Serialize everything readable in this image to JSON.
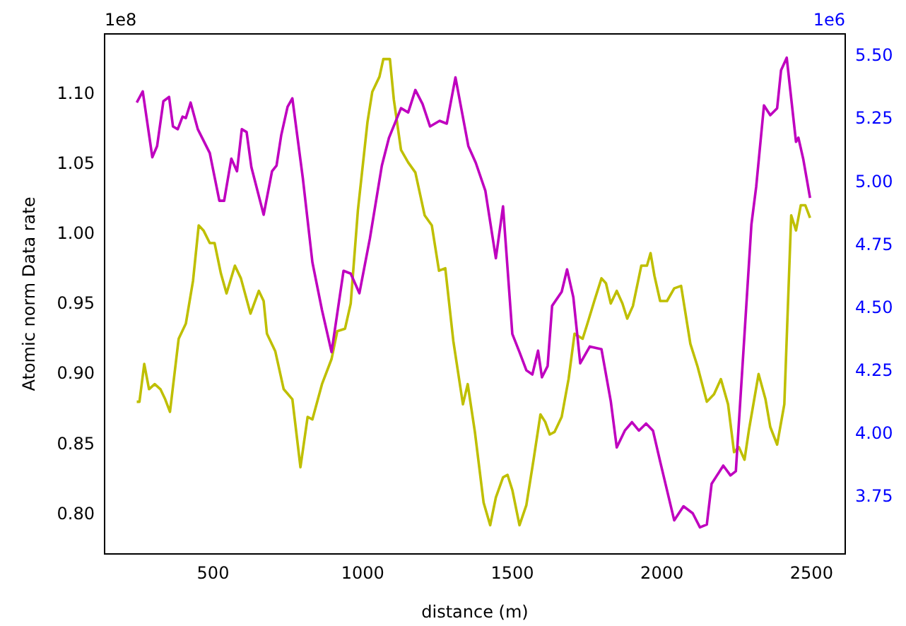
{
  "chart_data": {
    "type": "line",
    "xlabel": "distance (m)",
    "ylabel": "Atomic norm Data rate",
    "annotations": [
      "1e8",
      "1e6"
    ],
    "xlim": [
      137.5,
      2612.5
    ],
    "xticks": [
      500,
      1000,
      1500,
      2000,
      2500
    ],
    "ylim": [
      0.772,
      1.143
    ],
    "yticks": [
      {
        "value": 0.8,
        "label": "0.80"
      },
      {
        "value": 0.85,
        "label": "0.85"
      },
      {
        "value": 0.9,
        "label": "0.90"
      },
      {
        "value": 0.95,
        "label": "0.95"
      },
      {
        "value": 1.0,
        "label": "1.00"
      },
      {
        "value": 1.05,
        "label": "1.05"
      },
      {
        "value": 1.1,
        "label": "1.10"
      }
    ],
    "y2lim": [
      3.526,
      5.59
    ],
    "y2ticks": [
      3.75,
      {
        "value": 4.0,
        "label": "4.00"
      },
      4.25,
      {
        "value": 4.5,
        "label": "4.50"
      },
      4.75,
      {
        "value": 5.0,
        "label": "5.00"
      },
      5.25,
      {
        "value": 5.5,
        "label": "5.50"
      }
    ],
    "legend": false,
    "marker": "none",
    "line_style": "solid",
    "series": [
      {
        "color": "#bf00bf",
        "x": [
          245,
          265,
          297,
          313,
          334,
          353,
          366,
          382,
          398,
          409,
          425,
          449,
          489,
          521,
          537,
          561,
          580,
          596,
          612,
          628,
          669,
          697,
          712,
          728,
          749,
          765,
          800,
          832,
          864,
          896,
          936,
          960,
          989,
          1024,
          1064,
          1088,
          1128,
          1152,
          1176,
          1200,
          1225,
          1257,
          1281,
          1310,
          1353,
          1378,
          1410,
          1445,
          1469,
          1500,
          1524,
          1547,
          1567,
          1586,
          1599,
          1618,
          1633,
          1665,
          1683,
          1704,
          1727,
          1759,
          1798,
          1829,
          1849,
          1876,
          1900,
          1923,
          1947,
          1970,
          1994,
          2041,
          2072,
          2103,
          2127,
          2150,
          2166,
          2205,
          2229,
          2247,
          2252,
          2276,
          2299,
          2315,
          2341,
          2362,
          2385,
          2398,
          2417,
          2448,
          2456,
          2472,
          2495
        ],
        "values": [
          1.094,
          1.102,
          1.055,
          1.063,
          1.095,
          1.098,
          1.077,
          1.075,
          1.084,
          1.083,
          1.094,
          1.075,
          1.058,
          1.024,
          1.024,
          1.054,
          1.045,
          1.075,
          1.073,
          1.048,
          1.014,
          1.045,
          1.049,
          1.071,
          1.091,
          1.097,
          1.04,
          0.98,
          0.946,
          0.916,
          0.974,
          0.972,
          0.958,
          0.997,
          1.049,
          1.069,
          1.09,
          1.087,
          1.103,
          1.093,
          1.077,
          1.081,
          1.079,
          1.112,
          1.063,
          1.051,
          1.031,
          0.983,
          1.02,
          0.929,
          0.916,
          0.903,
          0.9,
          0.917,
          0.898,
          0.906,
          0.949,
          0.959,
          0.975,
          0.955,
          0.908,
          0.92,
          0.918,
          0.881,
          0.848,
          0.86,
          0.866,
          0.86,
          0.865,
          0.86,
          0.838,
          0.796,
          0.806,
          0.801,
          0.791,
          0.793,
          0.822,
          0.835,
          0.828,
          0.831,
          0.848,
          0.929,
          1.007,
          1.034,
          1.092,
          1.085,
          1.09,
          1.117,
          1.126,
          1.066,
          1.069,
          1.054,
          1.026
        ]
      },
      {
        "color": "#bfbf00",
        "axis": "y2",
        "x": [
          245,
          254,
          270,
          286,
          305,
          324,
          340,
          356,
          385,
          409,
          433,
          452,
          468,
          489,
          505,
          526,
          545,
          573,
          593,
          625,
          653,
          669,
          680,
          708,
          736,
          765,
          792,
          816,
          832,
          864,
          896,
          915,
          941,
          960,
          984,
          1016,
          1032,
          1056,
          1069,
          1091,
          1104,
          1128,
          1152,
          1176,
          1207,
          1231,
          1255,
          1276,
          1303,
          1335,
          1351,
          1375,
          1404,
          1426,
          1445,
          1469,
          1484,
          1500,
          1524,
          1547,
          1571,
          1594,
          1610,
          1625,
          1641,
          1665,
          1688,
          1708,
          1735,
          1751,
          1774,
          1798,
          1813,
          1829,
          1849,
          1868,
          1884,
          1903,
          1931,
          1950,
          1962,
          1975,
          1994,
          2017,
          2041,
          2064,
          2095,
          2119,
          2150,
          2174,
          2197,
          2221,
          2241,
          2257,
          2276,
          2291,
          2323,
          2346,
          2362,
          2385,
          2409,
          2432,
          2448,
          2464,
          2479,
          2495
        ],
        "values": [
          4.13,
          4.13,
          4.28,
          4.18,
          4.2,
          4.18,
          4.14,
          4.09,
          4.38,
          4.44,
          4.61,
          4.83,
          4.81,
          4.76,
          4.76,
          4.64,
          4.56,
          4.67,
          4.62,
          4.48,
          4.57,
          4.53,
          4.4,
          4.33,
          4.18,
          4.14,
          3.87,
          4.07,
          4.06,
          4.2,
          4.3,
          4.41,
          4.42,
          4.52,
          4.89,
          5.24,
          5.36,
          5.42,
          5.49,
          5.49,
          5.33,
          5.13,
          5.08,
          5.04,
          4.87,
          4.83,
          4.65,
          4.66,
          4.37,
          4.12,
          4.2,
          4.01,
          3.73,
          3.64,
          3.75,
          3.83,
          3.84,
          3.78,
          3.64,
          3.72,
          3.9,
          4.08,
          4.05,
          4.0,
          4.01,
          4.07,
          4.22,
          4.4,
          4.38,
          4.44,
          4.53,
          4.62,
          4.6,
          4.52,
          4.57,
          4.52,
          4.46,
          4.51,
          4.67,
          4.67,
          4.72,
          4.63,
          4.53,
          4.53,
          4.58,
          4.59,
          4.36,
          4.27,
          4.13,
          4.16,
          4.22,
          4.12,
          3.93,
          3.95,
          3.9,
          4.02,
          4.24,
          4.14,
          4.03,
          3.96,
          4.12,
          4.87,
          4.81,
          4.91,
          4.91,
          4.86
        ]
      }
    ]
  }
}
